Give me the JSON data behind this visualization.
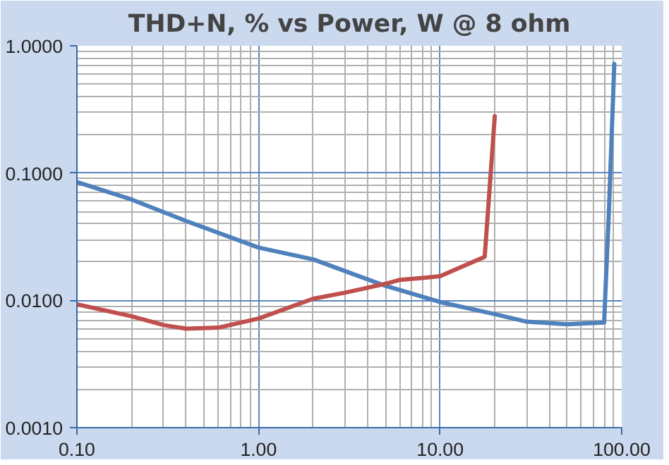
{
  "chart_data": {
    "type": "line",
    "title": "THD+N, % vs Power, W @ 8 ohm",
    "log": "xy",
    "xlim": [
      0.1,
      100
    ],
    "ylim": [
      0.001,
      1
    ],
    "xticks": [
      {
        "value": 0.1,
        "label": "0.10"
      },
      {
        "value": 1,
        "label": "1.00"
      },
      {
        "value": 10,
        "label": "10.00"
      },
      {
        "value": 100,
        "label": "100.00"
      }
    ],
    "yticks": [
      {
        "value": 0.001,
        "label": "0.0010"
      },
      {
        "value": 0.01,
        "label": "0.0100"
      },
      {
        "value": 0.1,
        "label": "0.1000"
      },
      {
        "value": 1,
        "label": "1.0000"
      }
    ],
    "grid": true,
    "marker": "none",
    "line_style": "solid",
    "series": [
      {
        "color": "#4f81bd",
        "x": [
          0.1,
          0.2,
          0.4,
          1,
          2,
          5,
          10,
          20,
          30,
          50,
          80,
          85,
          91
        ],
        "values": [
          0.085,
          0.062,
          0.042,
          0.026,
          0.021,
          0.013,
          0.0097,
          0.0078,
          0.0068,
          0.0065,
          0.0067,
          0.05,
          0.72
        ]
      },
      {
        "color": "#c0504d",
        "x": [
          0.1,
          0.2,
          0.3,
          0.4,
          0.6,
          1,
          2,
          3,
          5,
          6,
          8,
          10,
          17.6,
          20
        ],
        "values": [
          0.0093,
          0.0075,
          0.0064,
          0.006,
          0.0061,
          0.0072,
          0.0103,
          0.0115,
          0.0135,
          0.0145,
          0.015,
          0.0155,
          0.022,
          0.28
        ]
      }
    ]
  }
}
